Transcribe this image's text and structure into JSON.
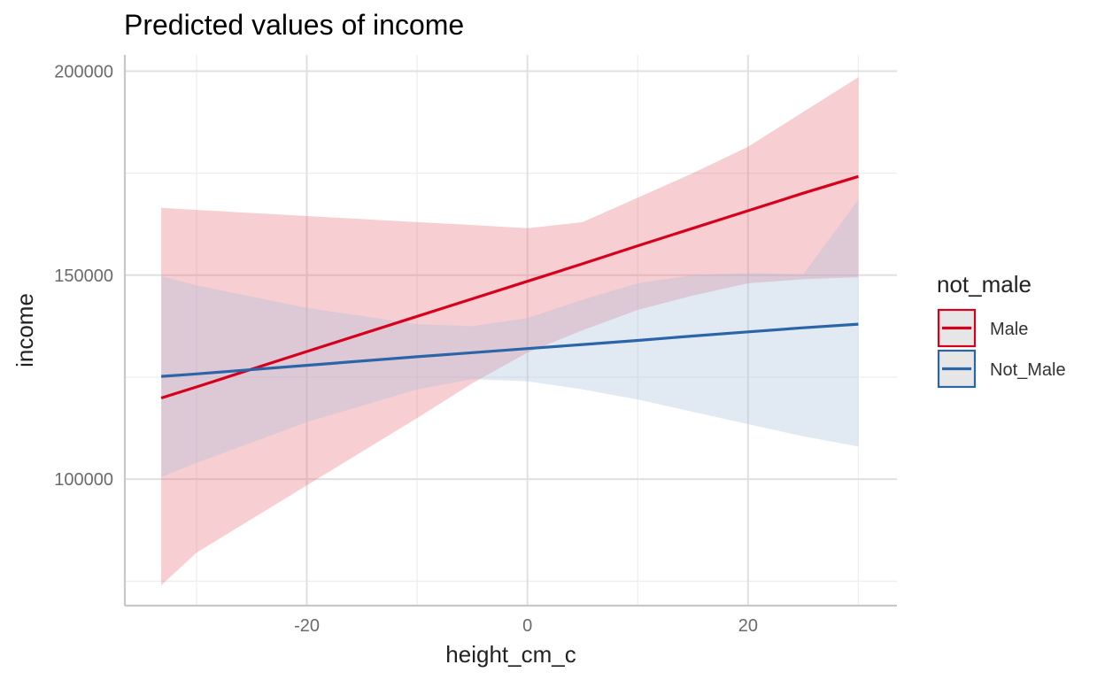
{
  "chart_data": {
    "type": "line",
    "title": "Predicted values of income",
    "xlabel": "height_cm_c",
    "ylabel": "income",
    "xlim": [
      -36.5,
      33.5
    ],
    "ylim": [
      69000,
      204000
    ],
    "x_ticks": [
      -20,
      0,
      20
    ],
    "x_tick_labels": [
      "-20",
      "0",
      "20"
    ],
    "x_minor_ticks": [
      -30,
      -10,
      10,
      30
    ],
    "y_ticks": [
      100000,
      150000,
      200000
    ],
    "y_tick_labels": [
      "100000",
      "150000",
      "200000"
    ],
    "y_minor_ticks": [
      75000,
      125000,
      175000
    ],
    "grid": true,
    "legend": {
      "title": "not_male",
      "position": "right"
    },
    "series": [
      {
        "name": "Male",
        "color": "#d7001c",
        "fill": "#e8737f",
        "x": [
          -33.2,
          -30,
          -20,
          -10,
          -5,
          0,
          5,
          10,
          15,
          20,
          25,
          30
        ],
        "y": [
          119900,
          122600,
          131300,
          139900,
          144200,
          148500,
          152800,
          157200,
          161500,
          165800,
          170100,
          174200
        ],
        "lower": [
          74000,
          82000,
          98500,
          115000,
          123500,
          131000,
          136500,
          141500,
          145000,
          148000,
          149000,
          149500
        ],
        "upper": [
          166500,
          166000,
          164500,
          163000,
          162300,
          161500,
          163000,
          169000,
          175000,
          181500,
          190000,
          198500
        ]
      },
      {
        "name": "Not_Male",
        "color": "#2c64a8",
        "fill": "#a9c1de",
        "x": [
          -33.2,
          -30,
          -20,
          -10,
          -5,
          0,
          5,
          10,
          15,
          20,
          25,
          30
        ],
        "y": [
          125200,
          125800,
          127900,
          130000,
          131000,
          132000,
          133000,
          134000,
          135100,
          136100,
          137100,
          138000
        ],
        "lower": [
          100500,
          104000,
          114000,
          122000,
          124500,
          124000,
          122000,
          119500,
          116500,
          113500,
          110500,
          108000
        ],
        "upper": [
          149800,
          147500,
          142000,
          138000,
          137500,
          139500,
          144000,
          148000,
          150000,
          150500,
          150200,
          168500
        ]
      }
    ]
  }
}
